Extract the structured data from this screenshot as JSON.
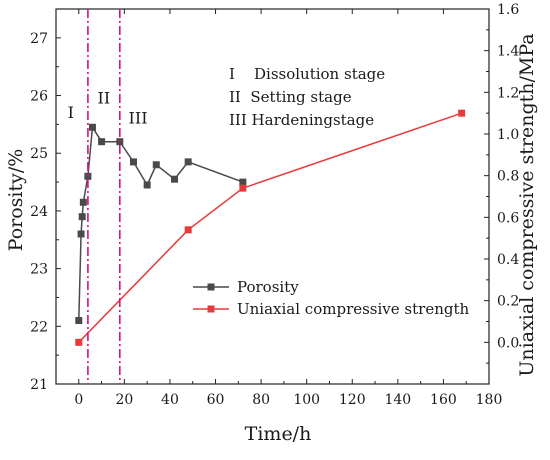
{
  "chart_data": {
    "type": "line",
    "xlabel": "Time/h",
    "ylabel_left": "Porosity/%",
    "ylabel_right": "Uniaxial compressive strength/MPa",
    "xlim": [
      -10,
      180
    ],
    "ylim_left": [
      21,
      27.5
    ],
    "ylim_right": [
      -0.2,
      1.6
    ],
    "x_ticks": [
      0,
      20,
      40,
      60,
      80,
      100,
      120,
      140,
      160,
      180
    ],
    "y_left_ticks": [
      21,
      22,
      23,
      24,
      25,
      26,
      27
    ],
    "y_right_ticks": [
      0.0,
      0.2,
      0.4,
      0.6,
      0.8,
      1.0,
      1.2,
      1.4,
      1.6
    ],
    "grid": false,
    "legend_position": "center-right",
    "series": [
      {
        "name": "Porosity",
        "axis": "left",
        "color": "#4a4a4a",
        "marker": "square",
        "x": [
          0,
          1,
          1.5,
          2,
          4,
          6,
          10,
          18,
          24,
          30,
          34,
          42,
          48,
          72
        ],
        "y": [
          22.1,
          23.6,
          23.9,
          24.15,
          24.6,
          25.45,
          25.2,
          25.2,
          24.85,
          24.45,
          24.8,
          24.55,
          24.85,
          24.5
        ]
      },
      {
        "name": "Uniaxial compressive strength",
        "axis": "right",
        "color": "#e83a3a",
        "marker": "square",
        "x": [
          0,
          48,
          72,
          168
        ],
        "y": [
          0.0,
          0.54,
          0.74,
          1.1
        ]
      }
    ],
    "vlines": [
      {
        "x": 4,
        "color": "#d4147a",
        "style": "dash-dot"
      },
      {
        "x": 18,
        "color": "#d4147a",
        "style": "dash-dot"
      }
    ],
    "stage_labels": [
      {
        "text": "I",
        "x": -3.5,
        "y": 25.7
      },
      {
        "text": "II",
        "x": 11,
        "y": 25.95
      },
      {
        "text": "III",
        "x": 26,
        "y": 25.6
      }
    ],
    "stage_legend": [
      "I    Dissolution stage",
      "II  Setting stage",
      "III Hardeningstage"
    ]
  }
}
